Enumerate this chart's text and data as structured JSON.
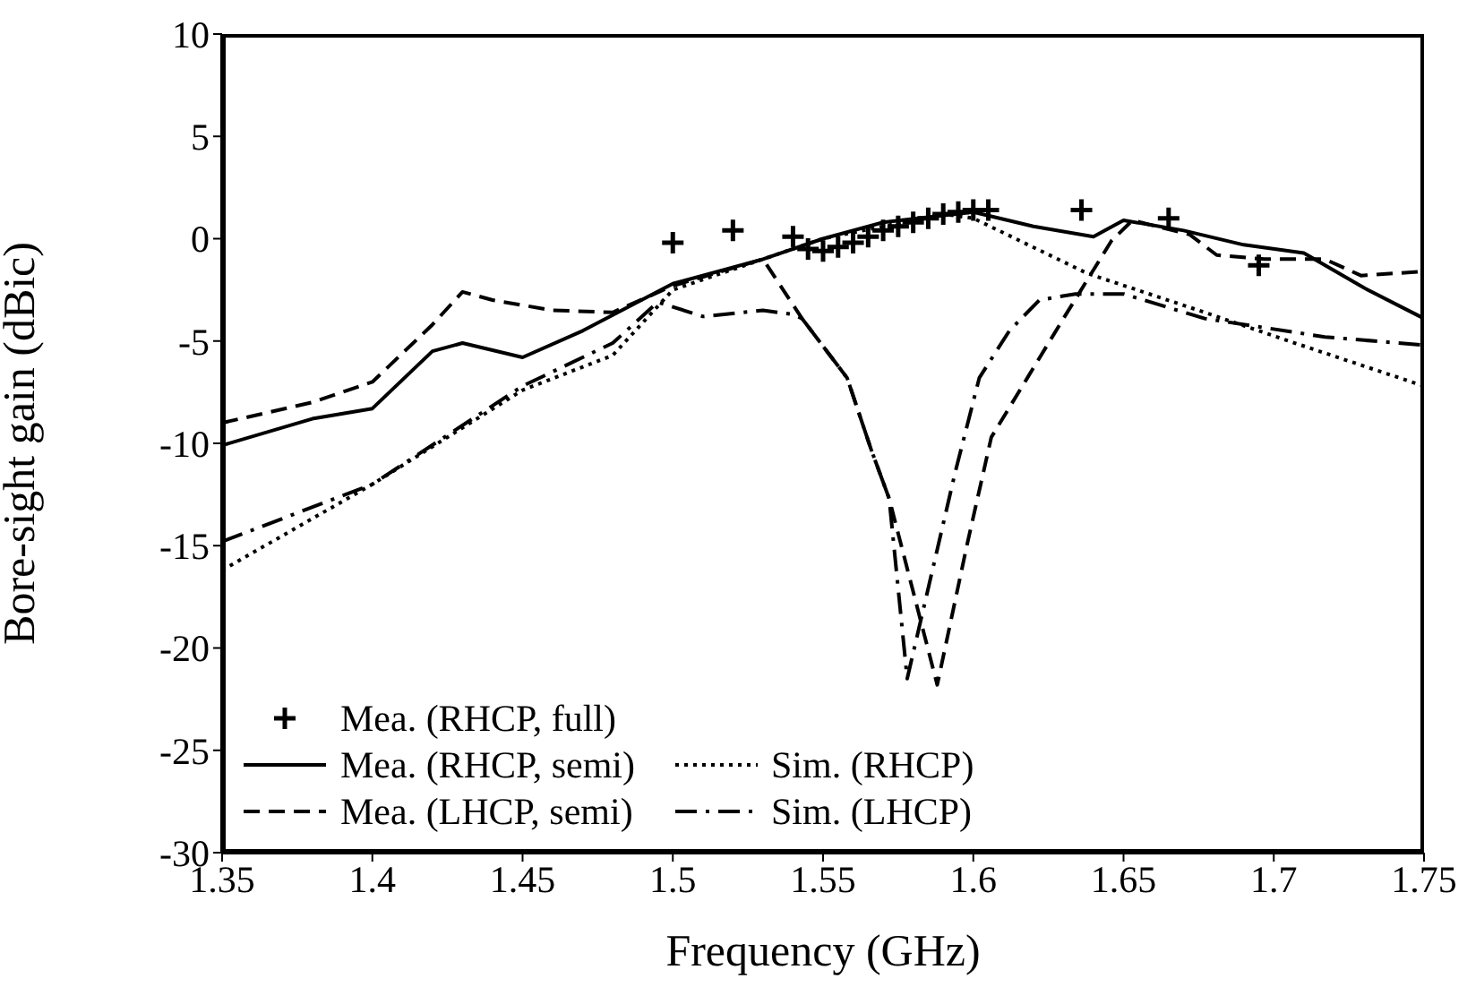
{
  "chart_data": {
    "type": "line",
    "xlabel": "Frequency (GHz)",
    "ylabel": "Bore-sight gain (dBic)",
    "xlim": [
      1.35,
      1.75
    ],
    "xticks": [
      1.35,
      1.4,
      1.45,
      1.5,
      1.55,
      1.6,
      1.65,
      1.7,
      1.75
    ],
    "ylim": [
      -30,
      10
    ],
    "yticks": [
      -30,
      -25,
      -20,
      -15,
      -10,
      -5,
      0,
      5,
      10
    ],
    "grid": false,
    "legend": "bottom left",
    "series": [
      {
        "name": "Mea. (RHCP, full)",
        "type": "scatter",
        "marker": "cross",
        "color": "#000000",
        "x": [
          1.5,
          1.52,
          1.54,
          1.545,
          1.55,
          1.555,
          1.56,
          1.565,
          1.57,
          1.575,
          1.58,
          1.585,
          1.59,
          1.595,
          1.6,
          1.605,
          1.636,
          1.665,
          1.695
        ],
        "values": [
          -0.2,
          0.4,
          0.1,
          -0.5,
          -0.6,
          -0.4,
          -0.2,
          0.1,
          0.4,
          0.6,
          0.8,
          1.0,
          1.2,
          1.3,
          1.4,
          1.4,
          1.4,
          1.0,
          -1.3
        ]
      },
      {
        "name": "Mea. (RHCP, semi)",
        "type": "line",
        "line_style": "solid",
        "color": "#000000",
        "x": [
          1.35,
          1.38,
          1.4,
          1.42,
          1.43,
          1.45,
          1.47,
          1.5,
          1.53,
          1.55,
          1.57,
          1.6,
          1.62,
          1.64,
          1.65,
          1.67,
          1.69,
          1.71,
          1.73,
          1.75
        ],
        "values": [
          -10.1,
          -8.8,
          -8.3,
          -5.5,
          -5.1,
          -5.8,
          -4.5,
          -2.2,
          -1.0,
          0,
          0.8,
          1.3,
          0.6,
          0.1,
          0.9,
          0.4,
          -0.3,
          -0.7,
          -2.4,
          -3.9
        ]
      },
      {
        "name": "Mea. (LHCP, semi)",
        "type": "line",
        "line_style": "dashed",
        "color": "#000000",
        "x": [
          1.35,
          1.38,
          1.4,
          1.42,
          1.43,
          1.44,
          1.46,
          1.48,
          1.5,
          1.53,
          1.543,
          1.558,
          1.566,
          1.572,
          1.588,
          1.598,
          1.606,
          1.618,
          1.63,
          1.646,
          1.653,
          1.672,
          1.681,
          1.697,
          1.717,
          1.729,
          1.75
        ],
        "values": [
          -9.0,
          -8.0,
          -7.0,
          -4.2,
          -2.6,
          -3.0,
          -3.5,
          -3.6,
          -2.3,
          -1.0,
          -3.9,
          -6.8,
          -10.3,
          -12.7,
          -21.8,
          -14.9,
          -9.7,
          -6.8,
          -3.9,
          -0.1,
          0.9,
          0.2,
          -0.8,
          -1.0,
          -1.0,
          -1.8,
          -1.6
        ]
      },
      {
        "name": "Sim. (RHCP)",
        "type": "line",
        "line_style": "dotted",
        "color": "#000000",
        "x": [
          1.35,
          1.4,
          1.45,
          1.48,
          1.5,
          1.55,
          1.59,
          1.6,
          1.638,
          1.677,
          1.707,
          1.75
        ],
        "values": [
          -16.2,
          -12.0,
          -7.4,
          -5.7,
          -2.5,
          0,
          1.2,
          1.0,
          -1.7,
          -3.6,
          -5.1,
          -7.2
        ]
      },
      {
        "name": "Sim. (LHCP)",
        "type": "line",
        "line_style": "dashdot",
        "color": "#000000",
        "x": [
          1.35,
          1.4,
          1.45,
          1.48,
          1.495,
          1.51,
          1.53,
          1.54,
          1.543,
          1.558,
          1.566,
          1.572,
          1.578,
          1.594,
          1.602,
          1.612,
          1.622,
          1.634,
          1.65,
          1.677,
          1.717,
          1.75
        ],
        "values": [
          -14.8,
          -12.0,
          -7.2,
          -5.1,
          -3.1,
          -3.8,
          -3.5,
          -3.7,
          -3.9,
          -6.8,
          -10.3,
          -12.7,
          -21.5,
          -11.4,
          -6.8,
          -4.5,
          -3.0,
          -2.7,
          -2.7,
          -3.9,
          -4.8,
          -5.2
        ]
      }
    ]
  }
}
